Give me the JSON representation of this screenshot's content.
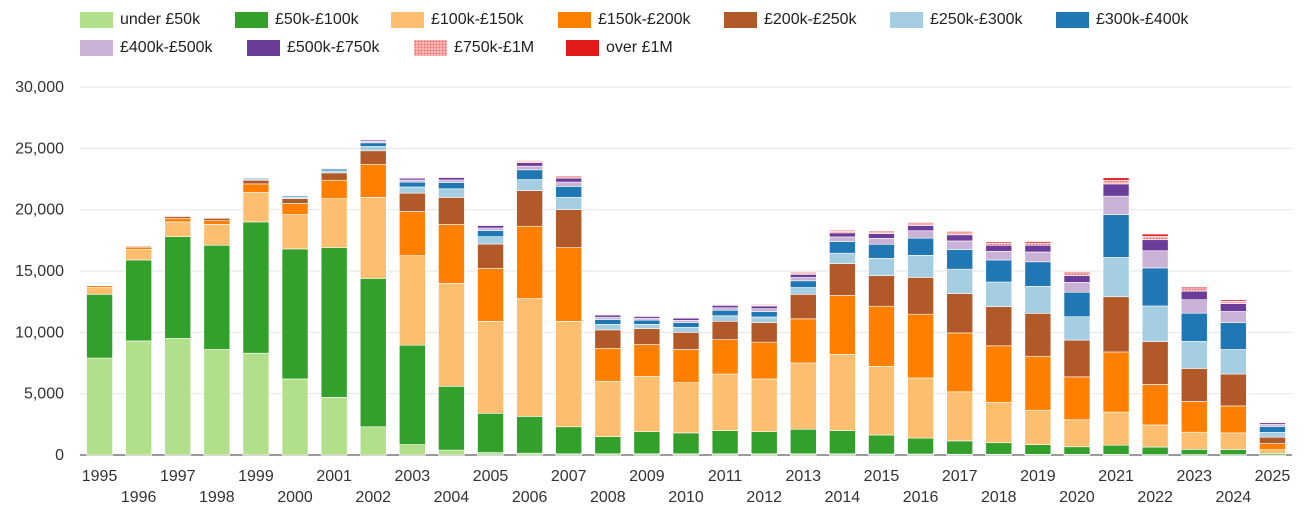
{
  "chart_data": {
    "type": "bar",
    "stacked": true,
    "title": "",
    "xlabel": "",
    "ylabel": "",
    "ylim": [
      0,
      30000
    ],
    "yticks": [
      0,
      5000,
      10000,
      15000,
      20000,
      25000,
      30000
    ],
    "ytick_labels": [
      "0",
      "5,000",
      "10,000",
      "15,000",
      "20,000",
      "25,000",
      "30,000"
    ],
    "grid": true,
    "legend_position": "top",
    "categories": [
      "1995",
      "1996",
      "1997",
      "1998",
      "1999",
      "2000",
      "2001",
      "2002",
      "2003",
      "2004",
      "2005",
      "2006",
      "2007",
      "2008",
      "2009",
      "2010",
      "2011",
      "2012",
      "2013",
      "2014",
      "2015",
      "2016",
      "2017",
      "2018",
      "2019",
      "2020",
      "2021",
      "2022",
      "2023",
      "2024",
      "2025"
    ],
    "series": [
      {
        "name": "under £50k",
        "color": "#b2df8a",
        "values": [
          7900,
          9300,
          9500,
          8600,
          8300,
          6200,
          4700,
          2300,
          850,
          400,
          200,
          150,
          100,
          100,
          100,
          100,
          100,
          100,
          100,
          100,
          80,
          80,
          60,
          60,
          50,
          50,
          50,
          30,
          30,
          30,
          10
        ]
      },
      {
        "name": "£50k-£100k",
        "color": "#33a02c",
        "values": [
          5200,
          6600,
          8300,
          8500,
          10700,
          10600,
          12200,
          12100,
          8100,
          5200,
          3200,
          3000,
          2200,
          1400,
          1800,
          1700,
          1900,
          1800,
          2000,
          1900,
          1550,
          1300,
          1090,
          940,
          800,
          620,
          750,
          620,
          430,
          420,
          120
        ]
      },
      {
        "name": "£100k-£150k",
        "color": "#fdbf6f",
        "values": [
          550,
          850,
          1200,
          1700,
          2400,
          2800,
          4000,
          6600,
          7300,
          8400,
          7500,
          9600,
          8600,
          4500,
          4500,
          4100,
          4600,
          4300,
          5400,
          6200,
          5600,
          4900,
          4000,
          3300,
          2800,
          2200,
          2700,
          1800,
          1400,
          1350,
          300
        ]
      },
      {
        "name": "£150k-£200k",
        "color": "#ff7f00",
        "values": [
          150,
          200,
          300,
          300,
          700,
          900,
          1500,
          2700,
          3600,
          4800,
          4300,
          5900,
          6000,
          2700,
          2600,
          2700,
          2800,
          3000,
          3600,
          4800,
          4900,
          5200,
          4800,
          4600,
          4400,
          3500,
          4900,
          3300,
          2500,
          2200,
          500
        ]
      },
      {
        "name": "£200k-£250k",
        "color": "#b15928",
        "values": [
          50,
          80,
          150,
          200,
          300,
          400,
          600,
          1100,
          1500,
          2200,
          2000,
          2900,
          3100,
          1500,
          1300,
          1400,
          1500,
          1600,
          2000,
          2600,
          2500,
          3000,
          3200,
          3200,
          3500,
          3000,
          4500,
          3500,
          2700,
          2600,
          520
        ]
      },
      {
        "name": "£250k-£300k",
        "color": "#a6cee3",
        "values": [
          20,
          30,
          50,
          60,
          90,
          120,
          160,
          350,
          500,
          700,
          600,
          900,
          1000,
          450,
          350,
          400,
          450,
          450,
          550,
          850,
          1400,
          1800,
          2000,
          2000,
          2200,
          1900,
          3200,
          2900,
          2200,
          2000,
          390
        ]
      },
      {
        "name": "£300k-£400k",
        "color": "#1f78b4",
        "values": [
          20,
          20,
          40,
          50,
          80,
          100,
          150,
          300,
          400,
          500,
          500,
          800,
          900,
          400,
          350,
          400,
          450,
          450,
          550,
          950,
          1150,
          1400,
          1600,
          1800,
          2000,
          2000,
          3500,
          3100,
          2300,
          2200,
          470
        ]
      },
      {
        "name": "£400k-£500k",
        "color": "#cab2d6",
        "values": [
          10,
          10,
          20,
          20,
          30,
          40,
          60,
          120,
          170,
          220,
          200,
          300,
          350,
          180,
          150,
          180,
          200,
          230,
          270,
          380,
          480,
          600,
          700,
          700,
          800,
          800,
          1500,
          1400,
          1100,
          900,
          200
        ]
      },
      {
        "name": "£500k-£750k",
        "color": "#6a3d9a",
        "values": [
          10,
          10,
          20,
          20,
          30,
          40,
          60,
          110,
          150,
          200,
          200,
          280,
          320,
          180,
          150,
          180,
          200,
          220,
          260,
          330,
          390,
          430,
          500,
          500,
          550,
          550,
          1000,
          900,
          700,
          650,
          130
        ]
      },
      {
        "name": "£750k-£1M",
        "color": "#fb9a99",
        "values": [
          5,
          5,
          10,
          10,
          10,
          15,
          20,
          40,
          60,
          70,
          70,
          100,
          120,
          60,
          50,
          60,
          70,
          80,
          100,
          120,
          130,
          150,
          170,
          170,
          180,
          160,
          300,
          280,
          200,
          180,
          50
        ]
      },
      {
        "name": "over £1M",
        "color": "#e31a1c",
        "values": [
          5,
          5,
          5,
          5,
          10,
          10,
          15,
          25,
          40,
          50,
          50,
          70,
          80,
          40,
          30,
          40,
          50,
          60,
          70,
          80,
          80,
          90,
          100,
          100,
          120,
          110,
          200,
          180,
          120,
          110,
          30
        ]
      }
    ]
  }
}
